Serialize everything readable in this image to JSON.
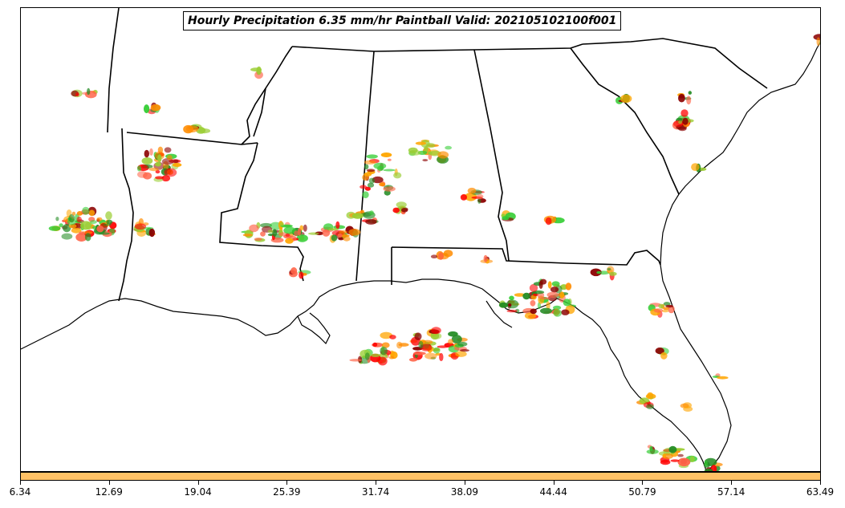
{
  "title": "Hourly Precipitation 6.35 mm/hr Paintball Valid: 202105102100f001",
  "colorbar": {
    "color": "#ffc266",
    "ticks": [
      "6.34",
      "12.69",
      "19.04",
      "25.39",
      "31.74",
      "38.09",
      "44.44",
      "50.79",
      "57.14",
      "63.49"
    ]
  },
  "colors": {
    "paintball": [
      "#ff8c00",
      "#ffa500",
      "#ff0000",
      "#32cd32",
      "#228b22",
      "#8b0000",
      "#9acd32",
      "#ff6347"
    ]
  }
}
